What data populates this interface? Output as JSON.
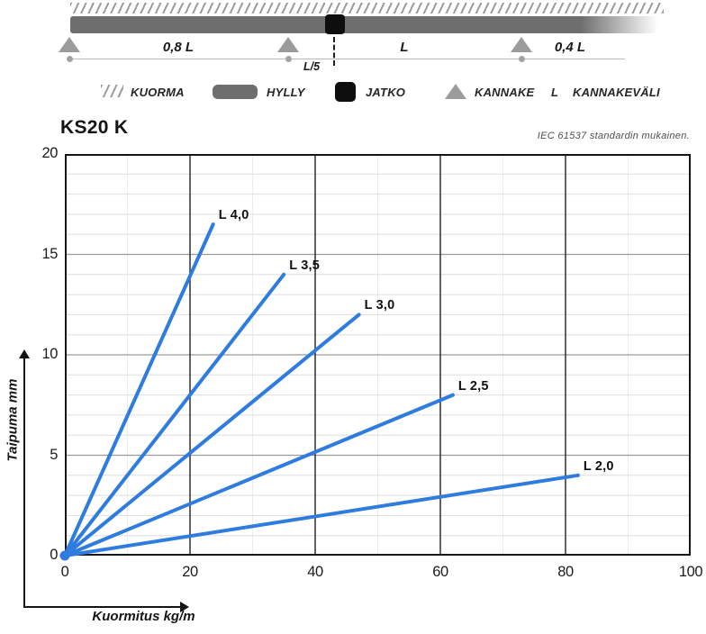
{
  "diagram": {
    "dim_labels": {
      "span1": "0,8 L",
      "joint": "L/5",
      "span2": "L",
      "span3": "0,4 L"
    },
    "legend": {
      "kuorma": "KUORMA",
      "hylly": "HYLLY",
      "jatko": "JATKO",
      "kannake": "KANNAKE",
      "l_symbol": "L",
      "kannakevali": "KANNAKEVÄLI"
    },
    "colors": {
      "shelf": "#6e6e6e",
      "support": "#9b9b9b",
      "joint": "#0e0e0e",
      "hatch": "#9c9c9c"
    }
  },
  "chart": {
    "title": "KS20 K",
    "note": "IEC 61537 standardin mukainen."
  },
  "chart_data": {
    "type": "line",
    "title": "KS20 K",
    "subtitle": "IEC 61537 standardin mukainen.",
    "xlabel": "Kuormitus kg/m",
    "ylabel": "Taipuma mm",
    "xlim": [
      0,
      100
    ],
    "ylim": [
      0,
      20
    ],
    "x_ticks": [
      0,
      20,
      40,
      60,
      80,
      100
    ],
    "y_ticks": [
      0,
      5,
      10,
      15,
      20
    ],
    "x_minor_step": 10,
    "y_minor_step": 1,
    "grid": "on",
    "legend_position": "inline-labels",
    "line_color": "#2e7ce0",
    "series": [
      {
        "name": "L 4,0",
        "x": [
          0,
          23.7
        ],
        "y": [
          0,
          16.5
        ]
      },
      {
        "name": "L 3,5",
        "x": [
          0,
          35
        ],
        "y": [
          0,
          14
        ]
      },
      {
        "name": "L 3,0",
        "x": [
          0,
          47
        ],
        "y": [
          0,
          12
        ]
      },
      {
        "name": "L 2,5",
        "x": [
          0,
          62
        ],
        "y": [
          0,
          8
        ]
      },
      {
        "name": "L 2,0",
        "x": [
          0,
          82
        ],
        "y": [
          0,
          4
        ]
      }
    ]
  }
}
